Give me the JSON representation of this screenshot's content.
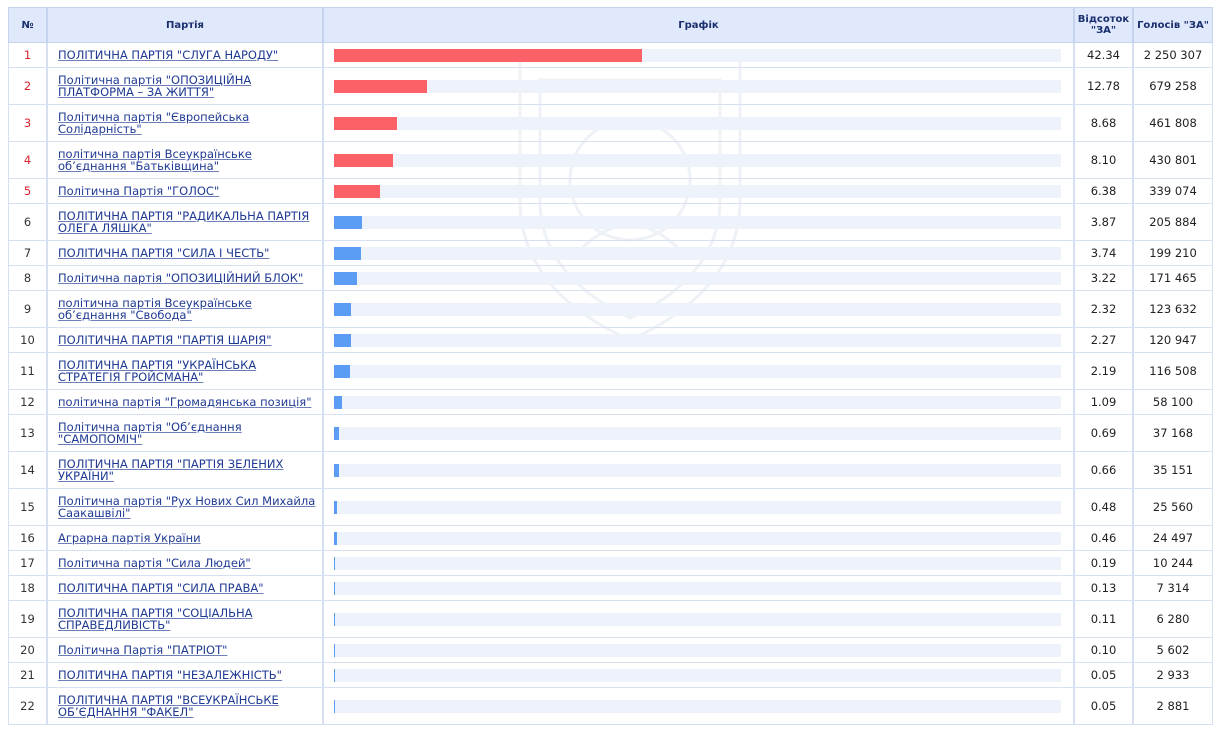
{
  "header": {
    "num": "№",
    "party": "Партія",
    "chart": "Графік",
    "percent": "Відсоток \"ЗА\"",
    "votes": "Голосів \"ЗА\""
  },
  "colors": {
    "top5": "#fb6166",
    "other": "#5b9cf4",
    "track": "#eef2fa"
  },
  "chart_data": {
    "type": "bar",
    "orientation": "horizontal",
    "xlim": [
      0,
      100
    ],
    "rows": [
      {
        "n": "1",
        "party": "ПОЛІТИЧНА ПАРТІЯ \"СЛУГА НАРОДУ\"",
        "pct": 42.34,
        "pct_label": "42.34",
        "votes": "2 250 307"
      },
      {
        "n": "2",
        "party": "Політична партія \"ОПОЗИЦІЙНА ПЛАТФОРМА – ЗА ЖИТТЯ\"",
        "pct": 12.78,
        "pct_label": "12.78",
        "votes": "679 258"
      },
      {
        "n": "3",
        "party": "Політична партія \"Європейська Солідарність\"",
        "pct": 8.68,
        "pct_label": "8.68",
        "votes": "461 808"
      },
      {
        "n": "4",
        "party": "політична партія Всеукраїнське об’єднання \"Батьківщина\"",
        "pct": 8.1,
        "pct_label": "8.10",
        "votes": "430 801"
      },
      {
        "n": "5",
        "party": "Політична Партія \"ГОЛОС\"",
        "pct": 6.38,
        "pct_label": "6.38",
        "votes": "339 074"
      },
      {
        "n": "6",
        "party": "ПОЛІТИЧНА ПАРТІЯ \"РАДИКАЛЬНА ПАРТІЯ ОЛЕГА ЛЯШКА\"",
        "pct": 3.87,
        "pct_label": "3.87",
        "votes": "205 884"
      },
      {
        "n": "7",
        "party": "ПОЛІТИЧНА ПАРТІЯ \"СИЛА І ЧЕСТЬ\"",
        "pct": 3.74,
        "pct_label": "3.74",
        "votes": "199 210"
      },
      {
        "n": "8",
        "party": "Політична партія \"ОПОЗИЦІЙНИЙ БЛОК\"",
        "pct": 3.22,
        "pct_label": "3.22",
        "votes": "171 465"
      },
      {
        "n": "9",
        "party": "політична партія Всеукраїнське об’єднання \"Свобода\"",
        "pct": 2.32,
        "pct_label": "2.32",
        "votes": "123 632"
      },
      {
        "n": "10",
        "party": "ПОЛІТИЧНА ПАРТІЯ \"ПАРТІЯ ШАРІЯ\"",
        "pct": 2.27,
        "pct_label": "2.27",
        "votes": "120 947"
      },
      {
        "n": "11",
        "party": "ПОЛІТИЧНА ПАРТІЯ \"УКРАЇНСЬКА СТРАТЕГІЯ ГРОЙСМАНА\"",
        "pct": 2.19,
        "pct_label": "2.19",
        "votes": "116 508"
      },
      {
        "n": "12",
        "party": "політична партія \"Громадянська позиція\"",
        "pct": 1.09,
        "pct_label": "1.09",
        "votes": "58 100"
      },
      {
        "n": "13",
        "party": "Політична партія \"Об’єднання \"САМОПОМІЧ\"",
        "pct": 0.69,
        "pct_label": "0.69",
        "votes": "37 168"
      },
      {
        "n": "14",
        "party": "ПОЛІТИЧНА ПАРТІЯ \"ПАРТІЯ ЗЕЛЕНИХ УКРАЇНИ\"",
        "pct": 0.66,
        "pct_label": "0.66",
        "votes": "35 151"
      },
      {
        "n": "15",
        "party": "Політична партія \"Рух Нових Сил Михайла Саакашвілі\"",
        "pct": 0.48,
        "pct_label": "0.48",
        "votes": "25 560"
      },
      {
        "n": "16",
        "party": "Аграрна партія України",
        "pct": 0.46,
        "pct_label": "0.46",
        "votes": "24 497"
      },
      {
        "n": "17",
        "party": "Політична партія \"Сила Людей\"",
        "pct": 0.19,
        "pct_label": "0.19",
        "votes": "10 244"
      },
      {
        "n": "18",
        "party": "ПОЛІТИЧНА ПАРТІЯ \"СИЛА ПРАВА\"",
        "pct": 0.13,
        "pct_label": "0.13",
        "votes": "7 314"
      },
      {
        "n": "19",
        "party": "ПОЛІТИЧНА ПАРТІЯ \"СОЦІАЛЬНА СПРАВЕДЛИВІСТЬ\"",
        "pct": 0.11,
        "pct_label": "0.11",
        "votes": "6 280"
      },
      {
        "n": "20",
        "party": "Політична Партія \"ПАТРІОТ\"",
        "pct": 0.1,
        "pct_label": "0.10",
        "votes": "5 602"
      },
      {
        "n": "21",
        "party": "ПОЛІТИЧНА ПАРТІЯ \"НЕЗАЛЕЖНІСТЬ\"",
        "pct": 0.05,
        "pct_label": "0.05",
        "votes": "2 933"
      },
      {
        "n": "22",
        "party": "ПОЛІТИЧНА ПАРТІЯ \"ВСЕУКРАЇНСЬКЕ ОБ’ЄДНАННЯ \"ФАКЕЛ\"",
        "pct": 0.05,
        "pct_label": "0.05",
        "votes": "2 881"
      }
    ]
  }
}
